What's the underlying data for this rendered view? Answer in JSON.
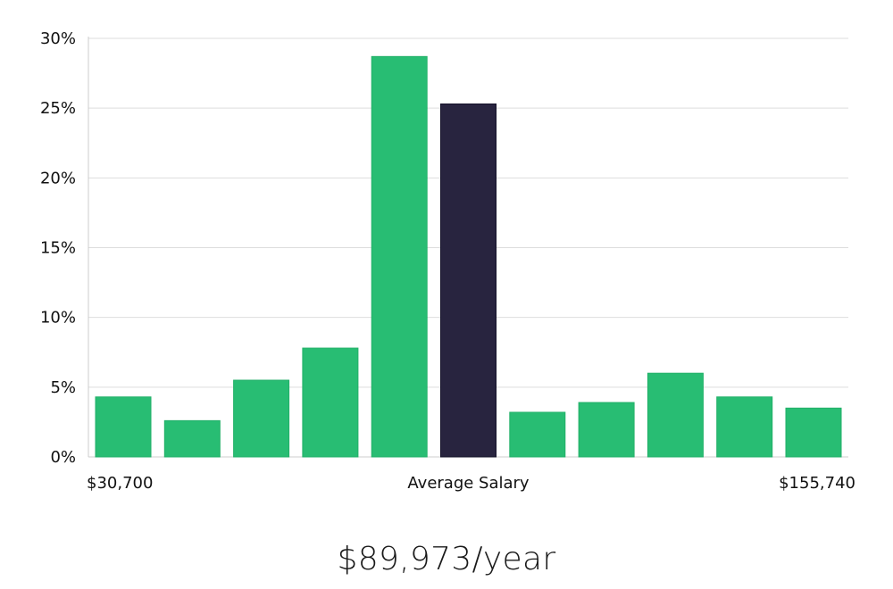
{
  "colors": {
    "bar": "#28bd73",
    "highlight": "#28243f",
    "grid": "#dddddd",
    "axis": "#cccccc"
  },
  "chart_data": {
    "type": "bar",
    "yticks": [
      "0%",
      "5%",
      "10%",
      "15%",
      "20%",
      "25%",
      "30%"
    ],
    "ylim": [
      0,
      30
    ],
    "values": [
      4.3,
      2.6,
      5.5,
      7.8,
      28.7,
      25.3,
      3.2,
      3.9,
      6.0,
      4.3,
      3.5
    ],
    "highlight_index": 5,
    "x_labels": {
      "left": "$30,700",
      "center": "Average Salary",
      "right": "$155,740"
    },
    "grid": true
  },
  "headline": "$89,973/year"
}
